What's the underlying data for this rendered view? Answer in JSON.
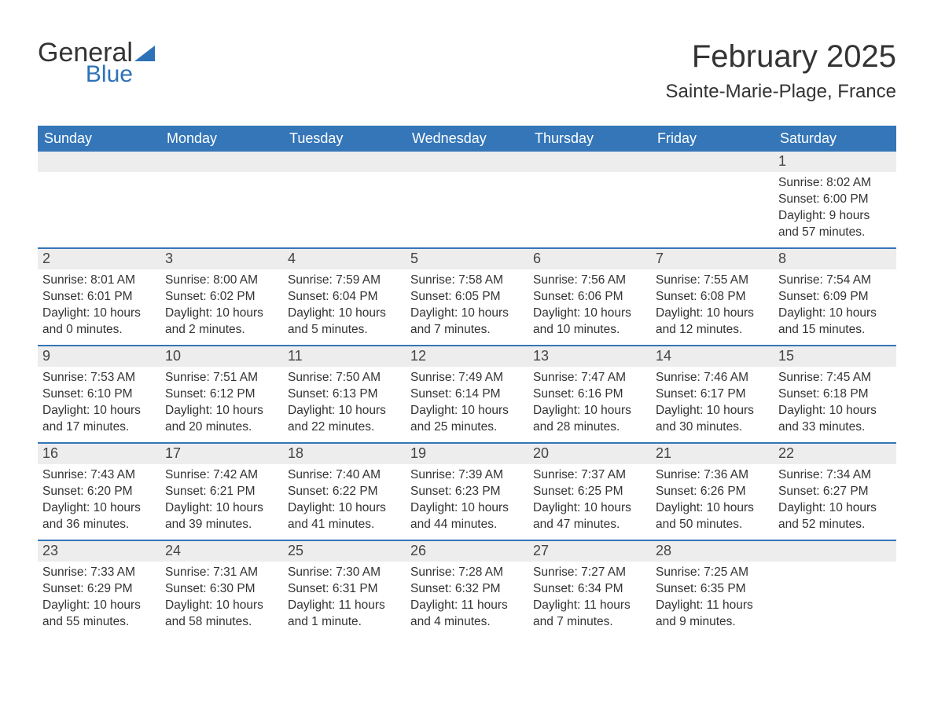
{
  "logo": {
    "text1": "General",
    "text2": "Blue"
  },
  "header": {
    "month_title": "February 2025",
    "location": "Sainte-Marie-Plage, France"
  },
  "colors": {
    "header_bg": "#3476b8",
    "header_fg": "#ffffff",
    "daynum_bg": "#ededed",
    "rule": "#3476b8",
    "text": "#333333",
    "logo_blue": "#2d72b8"
  },
  "dow": [
    "Sunday",
    "Monday",
    "Tuesday",
    "Wednesday",
    "Thursday",
    "Friday",
    "Saturday"
  ],
  "weeks": [
    [
      {
        "n": "",
        "sunrise": "",
        "sunset": "",
        "daylight": ""
      },
      {
        "n": "",
        "sunrise": "",
        "sunset": "",
        "daylight": ""
      },
      {
        "n": "",
        "sunrise": "",
        "sunset": "",
        "daylight": ""
      },
      {
        "n": "",
        "sunrise": "",
        "sunset": "",
        "daylight": ""
      },
      {
        "n": "",
        "sunrise": "",
        "sunset": "",
        "daylight": ""
      },
      {
        "n": "",
        "sunrise": "",
        "sunset": "",
        "daylight": ""
      },
      {
        "n": "1",
        "sunrise": "Sunrise: 8:02 AM",
        "sunset": "Sunset: 6:00 PM",
        "daylight": "Daylight: 9 hours and 57 minutes."
      }
    ],
    [
      {
        "n": "2",
        "sunrise": "Sunrise: 8:01 AM",
        "sunset": "Sunset: 6:01 PM",
        "daylight": "Daylight: 10 hours and 0 minutes."
      },
      {
        "n": "3",
        "sunrise": "Sunrise: 8:00 AM",
        "sunset": "Sunset: 6:02 PM",
        "daylight": "Daylight: 10 hours and 2 minutes."
      },
      {
        "n": "4",
        "sunrise": "Sunrise: 7:59 AM",
        "sunset": "Sunset: 6:04 PM",
        "daylight": "Daylight: 10 hours and 5 minutes."
      },
      {
        "n": "5",
        "sunrise": "Sunrise: 7:58 AM",
        "sunset": "Sunset: 6:05 PM",
        "daylight": "Daylight: 10 hours and 7 minutes."
      },
      {
        "n": "6",
        "sunrise": "Sunrise: 7:56 AM",
        "sunset": "Sunset: 6:06 PM",
        "daylight": "Daylight: 10 hours and 10 minutes."
      },
      {
        "n": "7",
        "sunrise": "Sunrise: 7:55 AM",
        "sunset": "Sunset: 6:08 PM",
        "daylight": "Daylight: 10 hours and 12 minutes."
      },
      {
        "n": "8",
        "sunrise": "Sunrise: 7:54 AM",
        "sunset": "Sunset: 6:09 PM",
        "daylight": "Daylight: 10 hours and 15 minutes."
      }
    ],
    [
      {
        "n": "9",
        "sunrise": "Sunrise: 7:53 AM",
        "sunset": "Sunset: 6:10 PM",
        "daylight": "Daylight: 10 hours and 17 minutes."
      },
      {
        "n": "10",
        "sunrise": "Sunrise: 7:51 AM",
        "sunset": "Sunset: 6:12 PM",
        "daylight": "Daylight: 10 hours and 20 minutes."
      },
      {
        "n": "11",
        "sunrise": "Sunrise: 7:50 AM",
        "sunset": "Sunset: 6:13 PM",
        "daylight": "Daylight: 10 hours and 22 minutes."
      },
      {
        "n": "12",
        "sunrise": "Sunrise: 7:49 AM",
        "sunset": "Sunset: 6:14 PM",
        "daylight": "Daylight: 10 hours and 25 minutes."
      },
      {
        "n": "13",
        "sunrise": "Sunrise: 7:47 AM",
        "sunset": "Sunset: 6:16 PM",
        "daylight": "Daylight: 10 hours and 28 minutes."
      },
      {
        "n": "14",
        "sunrise": "Sunrise: 7:46 AM",
        "sunset": "Sunset: 6:17 PM",
        "daylight": "Daylight: 10 hours and 30 minutes."
      },
      {
        "n": "15",
        "sunrise": "Sunrise: 7:45 AM",
        "sunset": "Sunset: 6:18 PM",
        "daylight": "Daylight: 10 hours and 33 minutes."
      }
    ],
    [
      {
        "n": "16",
        "sunrise": "Sunrise: 7:43 AM",
        "sunset": "Sunset: 6:20 PM",
        "daylight": "Daylight: 10 hours and 36 minutes."
      },
      {
        "n": "17",
        "sunrise": "Sunrise: 7:42 AM",
        "sunset": "Sunset: 6:21 PM",
        "daylight": "Daylight: 10 hours and 39 minutes."
      },
      {
        "n": "18",
        "sunrise": "Sunrise: 7:40 AM",
        "sunset": "Sunset: 6:22 PM",
        "daylight": "Daylight: 10 hours and 41 minutes."
      },
      {
        "n": "19",
        "sunrise": "Sunrise: 7:39 AM",
        "sunset": "Sunset: 6:23 PM",
        "daylight": "Daylight: 10 hours and 44 minutes."
      },
      {
        "n": "20",
        "sunrise": "Sunrise: 7:37 AM",
        "sunset": "Sunset: 6:25 PM",
        "daylight": "Daylight: 10 hours and 47 minutes."
      },
      {
        "n": "21",
        "sunrise": "Sunrise: 7:36 AM",
        "sunset": "Sunset: 6:26 PM",
        "daylight": "Daylight: 10 hours and 50 minutes."
      },
      {
        "n": "22",
        "sunrise": "Sunrise: 7:34 AM",
        "sunset": "Sunset: 6:27 PM",
        "daylight": "Daylight: 10 hours and 52 minutes."
      }
    ],
    [
      {
        "n": "23",
        "sunrise": "Sunrise: 7:33 AM",
        "sunset": "Sunset: 6:29 PM",
        "daylight": "Daylight: 10 hours and 55 minutes."
      },
      {
        "n": "24",
        "sunrise": "Sunrise: 7:31 AM",
        "sunset": "Sunset: 6:30 PM",
        "daylight": "Daylight: 10 hours and 58 minutes."
      },
      {
        "n": "25",
        "sunrise": "Sunrise: 7:30 AM",
        "sunset": "Sunset: 6:31 PM",
        "daylight": "Daylight: 11 hours and 1 minute."
      },
      {
        "n": "26",
        "sunrise": "Sunrise: 7:28 AM",
        "sunset": "Sunset: 6:32 PM",
        "daylight": "Daylight: 11 hours and 4 minutes."
      },
      {
        "n": "27",
        "sunrise": "Sunrise: 7:27 AM",
        "sunset": "Sunset: 6:34 PM",
        "daylight": "Daylight: 11 hours and 7 minutes."
      },
      {
        "n": "28",
        "sunrise": "Sunrise: 7:25 AM",
        "sunset": "Sunset: 6:35 PM",
        "daylight": "Daylight: 11 hours and 9 minutes."
      },
      {
        "n": "",
        "sunrise": "",
        "sunset": "",
        "daylight": ""
      }
    ]
  ]
}
